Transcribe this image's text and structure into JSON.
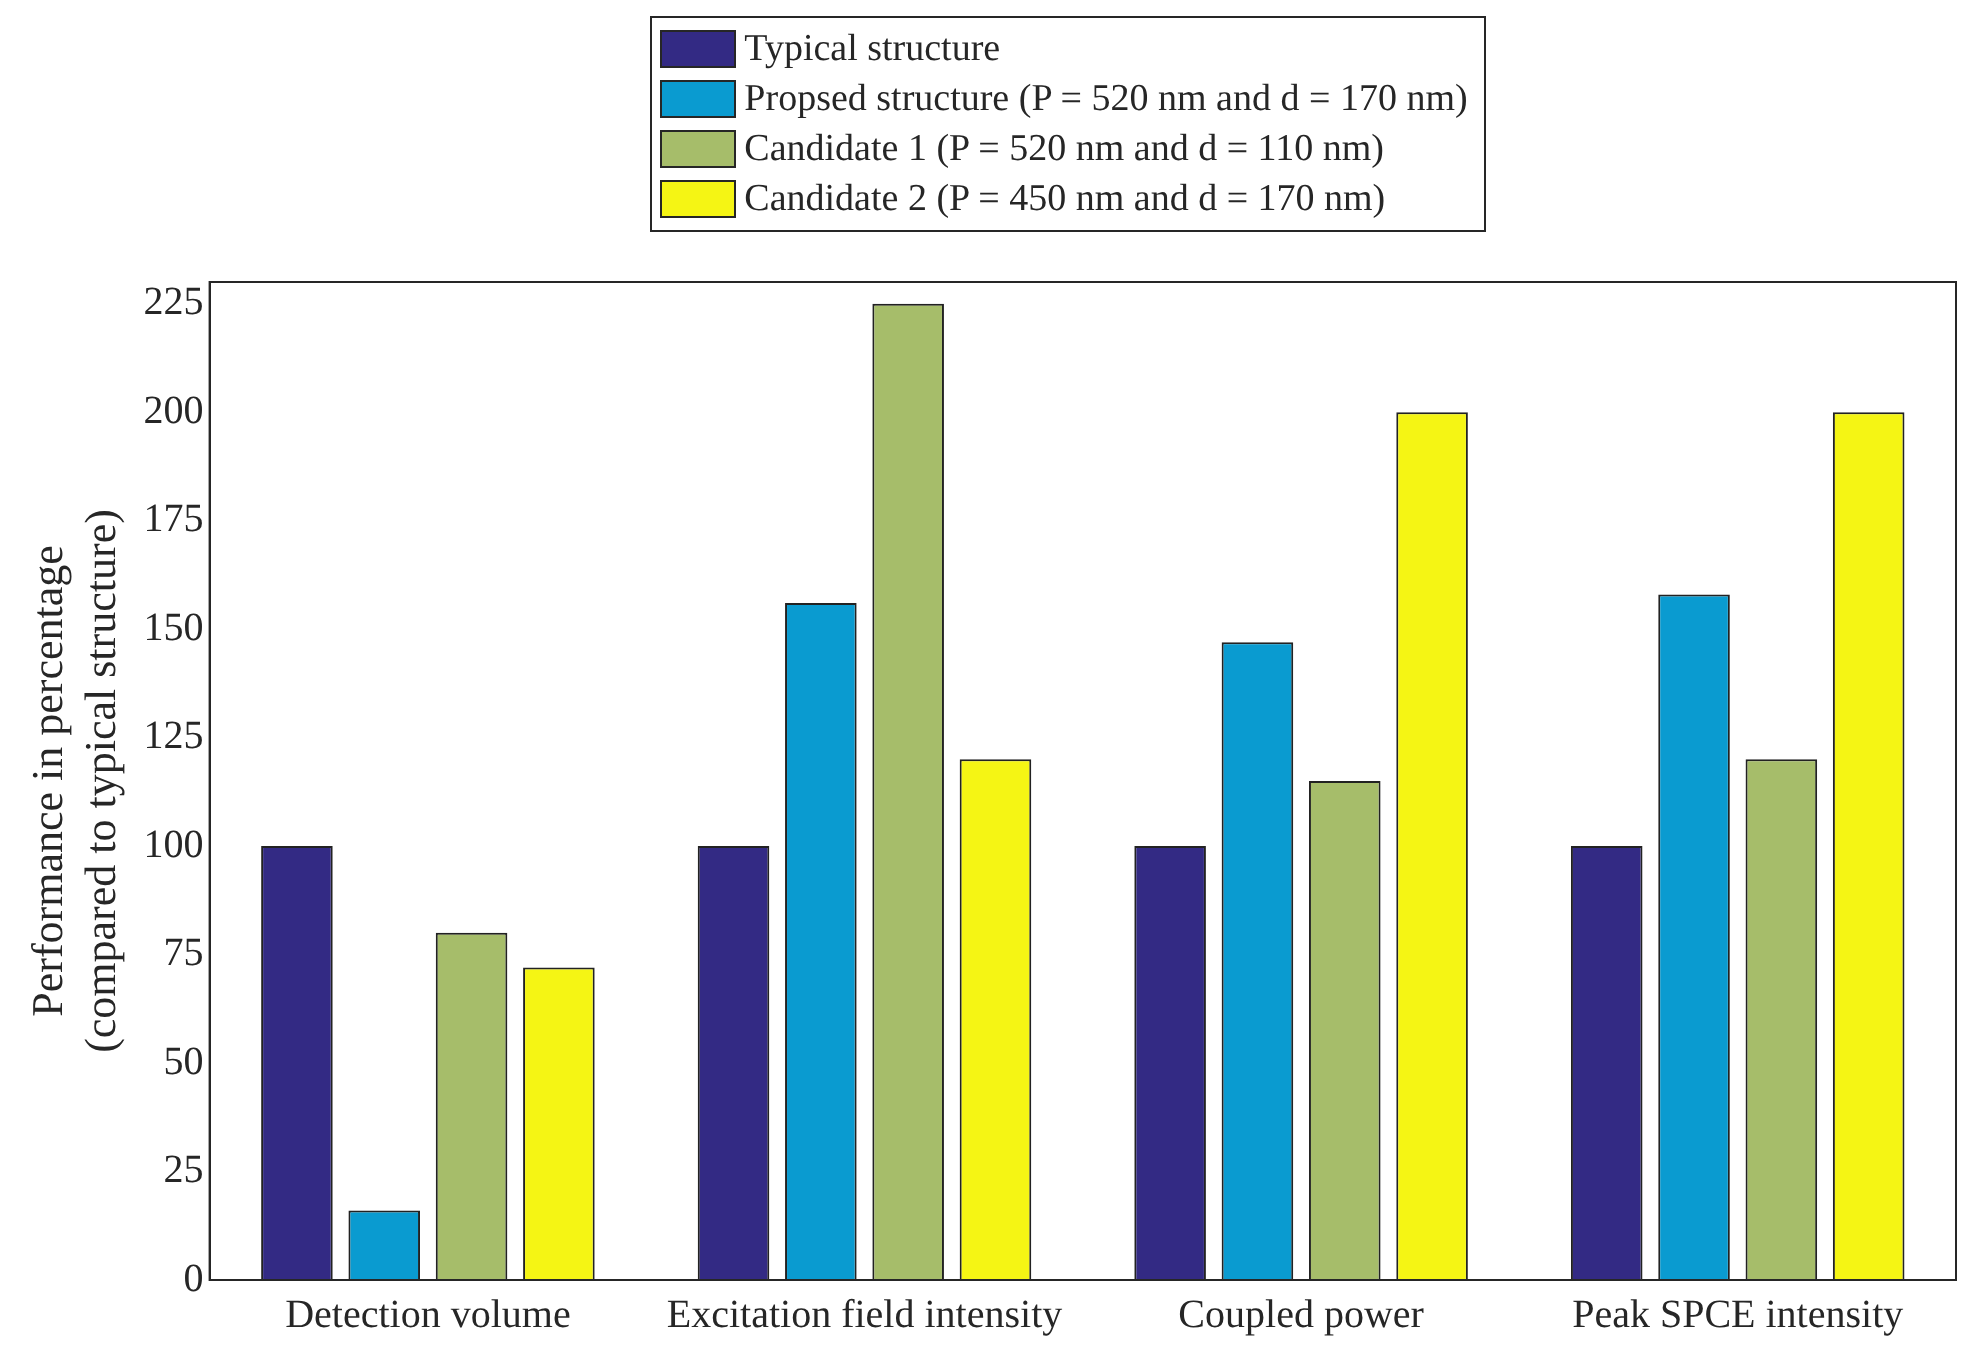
{
  "chart_data": {
    "type": "bar",
    "categories": [
      "Detection volume",
      "Excitation field intensity",
      "Coupled power",
      "Peak SPCE intensity"
    ],
    "ylabel": "Performance in percentage\n(compared to typical structure)",
    "series": [
      {
        "name": "Typical structure",
        "color": "#332a84",
        "values": [
          100,
          100,
          100,
          100
        ]
      },
      {
        "name": "Propsed structure (P = 520 nm and d = 170 nm)",
        "color": "#0a9bd0",
        "values": [
          16,
          156,
          147,
          158
        ]
      },
      {
        "name": "Candidate 1 (P = 520 nm and d = 110 nm)",
        "color": "#a6bd6a",
        "values": [
          80,
          225,
          115,
          120
        ]
      },
      {
        "name": "Candidate 2 (P = 450 nm and d = 170 nm)",
        "color": "#f5f514",
        "values": [
          72,
          120,
          200,
          200
        ]
      }
    ],
    "ylim": [
      0,
      230
    ],
    "yticks": [
      0,
      25,
      50,
      75,
      100,
      125,
      150,
      175,
      200,
      225
    ],
    "grid": false,
    "legend": "top"
  }
}
